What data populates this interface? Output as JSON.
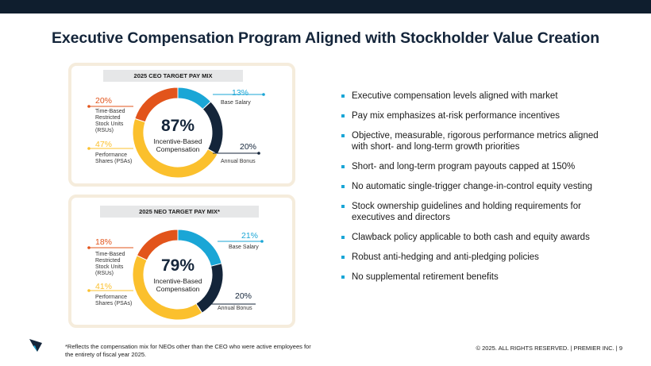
{
  "title": "Executive Compensation Program Aligned with Stockholder Value Creation",
  "ceo_chart": {
    "heading": "2025 CEO TARGET PAY MIX",
    "center_pct": "87%",
    "center_label_1": "Incentive-Based",
    "center_label_2": "Compensation",
    "slices": [
      {
        "name": "Base Salary",
        "pct": "13%",
        "value": 13,
        "color": "#1aa6d6"
      },
      {
        "name": "Annual Bonus",
        "pct": "20%",
        "value": 20,
        "color": "#14253a"
      },
      {
        "name": "Performance Shares (PSAs)",
        "pct": "47%",
        "value": 47,
        "color": "#fbc02d"
      },
      {
        "name": "Time-Based Restricted Stock Units (RSUs)",
        "pct": "20%",
        "value": 20,
        "color": "#e2541b"
      }
    ],
    "labels": {
      "rsu_1": "Time-Based",
      "rsu_2": "Restricted",
      "rsu_3": "Stock Units",
      "rsu_4": "(RSUs)",
      "psa_1": "Performance",
      "psa_2": "Shares (PSAs)",
      "base": "Base Salary",
      "bonus": "Annual Bonus"
    }
  },
  "neo_chart": {
    "heading": "2025 NEO TARGET PAY MIX*",
    "center_pct": "79%",
    "center_label_1": "Incentive-Based",
    "center_label_2": "Compensation",
    "slices": [
      {
        "name": "Base Salary",
        "pct": "21%",
        "value": 21,
        "color": "#1aa6d6"
      },
      {
        "name": "Annual Bonus",
        "pct": "20%",
        "value": 20,
        "color": "#14253a"
      },
      {
        "name": "Performance Shares (PSAs)",
        "pct": "41%",
        "value": 41,
        "color": "#fbc02d"
      },
      {
        "name": "Time-Based Restricted Stock Units (RSUs)",
        "pct": "18%",
        "value": 18,
        "color": "#e2541b"
      }
    ],
    "labels": {
      "rsu_1": "Time-Based",
      "rsu_2": "Restricted",
      "rsu_3": "Stock Units",
      "rsu_4": "(RSUs)",
      "psa_1": "Performance",
      "psa_2": "Shares (PSAs)",
      "base": "Base Salary",
      "bonus": "Annual Bonus"
    }
  },
  "bullets": [
    "Executive compensation levels aligned with market",
    "Pay mix emphasizes at-risk performance incentives",
    "Objective, measurable, rigorous performance metrics aligned with short- and long-term growth priorities",
    "Short- and long-term program payouts capped at 150%",
    "No automatic single-trigger change-in-control equity vesting",
    "Stock ownership guidelines and holding requirements for executives and directors",
    "Clawback policy applicable to both cash and equity awards",
    "Robust anti-hedging and anti-pledging policies",
    "No supplemental retirement benefits"
  ],
  "footnote": "*Reflects the compensation mix for NEOs other than the CEO who were active employees for the entirety of fiscal year 2025.",
  "copyright": "© 2025. ALL RIGHTS RESERVED.  |  PREMIER INC.  |  9",
  "colors": {
    "navy": "#14253a",
    "blue": "#1aa6d6",
    "orange": "#e2541b",
    "yellow": "#fbc02d"
  }
}
